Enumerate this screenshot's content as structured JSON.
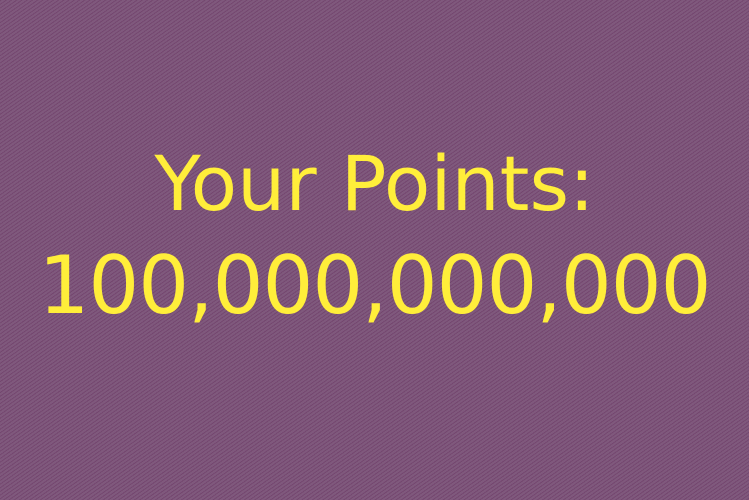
{
  "score": {
    "label": "Your Points:",
    "value": "100,000,000,000"
  },
  "colors": {
    "background": "#7b4f7a",
    "text": "#ffee3a"
  }
}
